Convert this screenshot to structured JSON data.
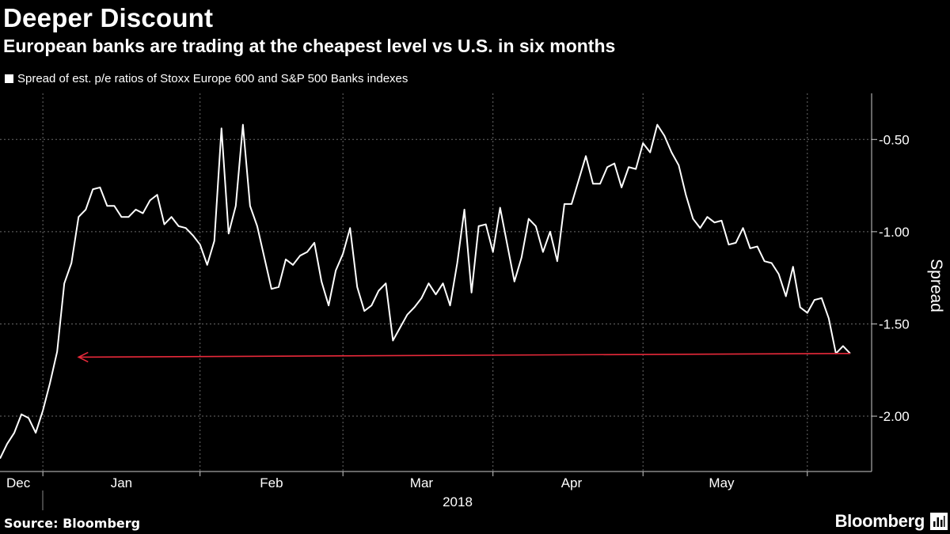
{
  "header": {
    "title": "Deeper Discount",
    "subtitle": "European banks are trading at the cheapest level vs U.S. in six months"
  },
  "footer": {
    "source": "Source: Bloomberg",
    "brand": "Bloomberg"
  },
  "chart_data": {
    "type": "line",
    "title": "Deeper Discount",
    "subtitle": "European banks are trading at the cheapest level vs U.S. in six months",
    "xlabel": "2018",
    "ylabel": "Spread",
    "ylim": [
      -2.3,
      -0.25
    ],
    "yticks": [
      -0.5,
      -1.0,
      -1.5,
      -2.0
    ],
    "ytick_labels": [
      "-0.50",
      "-1.00",
      "-1.50",
      "-2.00"
    ],
    "x_start": 0,
    "x_end": 122,
    "month_labels": [
      {
        "label": "Dec",
        "x": 0
      },
      {
        "label": "Jan",
        "x": 17
      },
      {
        "label": "Feb",
        "x": 38
      },
      {
        "label": "Mar",
        "x": 59
      },
      {
        "label": "Apr",
        "x": 80
      },
      {
        "label": "May",
        "x": 101
      }
    ],
    "month_separators": [
      6,
      28,
      48,
      69,
      90,
      113
    ],
    "year_label": "2018",
    "grid": true,
    "legend": "top-left",
    "series": [
      {
        "name": "Spread of est. p/e ratios of Stoxx Europe 600 and S&P 500 Banks indexes",
        "color": "#ffffff",
        "values": [
          -2.23,
          -2.15,
          -2.09,
          -1.99,
          -2.01,
          -2.09,
          -1.97,
          -1.82,
          -1.65,
          -1.28,
          -1.17,
          -0.92,
          -0.88,
          -0.77,
          -0.76,
          -0.86,
          -0.86,
          -0.92,
          -0.92,
          -0.88,
          -0.9,
          -0.83,
          -0.8,
          -0.96,
          -0.92,
          -0.97,
          -0.98,
          -1.02,
          -1.07,
          -1.18,
          -1.05,
          -0.44,
          -1.01,
          -0.86,
          -0.42,
          -0.86,
          -0.97,
          -1.14,
          -1.31,
          -1.3,
          -1.15,
          -1.18,
          -1.13,
          -1.11,
          -1.06,
          -1.27,
          -1.4,
          -1.21,
          -1.12,
          -0.98,
          -1.3,
          -1.43,
          -1.4,
          -1.32,
          -1.28,
          -1.59,
          -1.52,
          -1.45,
          -1.41,
          -1.36,
          -1.28,
          -1.34,
          -1.28,
          -1.4,
          -1.17,
          -0.88,
          -1.33,
          -0.97,
          -0.96,
          -1.11,
          -0.87,
          -1.07,
          -1.27,
          -1.14,
          -0.93,
          -0.97,
          -1.11,
          -1.0,
          -1.16,
          -0.85,
          -0.85,
          -0.72,
          -0.59,
          -0.74,
          -0.74,
          -0.65,
          -0.63,
          -0.76,
          -0.65,
          -0.66,
          -0.52,
          -0.57,
          -0.42,
          -0.48,
          -0.57,
          -0.64,
          -0.8,
          -0.93,
          -0.98,
          -0.92,
          -0.95,
          -0.94,
          -1.07,
          -1.06,
          -0.98,
          -1.09,
          -1.08,
          -1.16,
          -1.17,
          -1.23,
          -1.35,
          -1.19,
          -1.41,
          -1.44,
          -1.37,
          -1.36,
          -1.47,
          -1.66,
          -1.62,
          -1.66
        ]
      }
    ],
    "annotations": [
      {
        "type": "arrow",
        "color": "#e8293a",
        "from_x": 119,
        "from_y": -1.66,
        "to_x": 11,
        "to_y": -1.68
      }
    ]
  }
}
